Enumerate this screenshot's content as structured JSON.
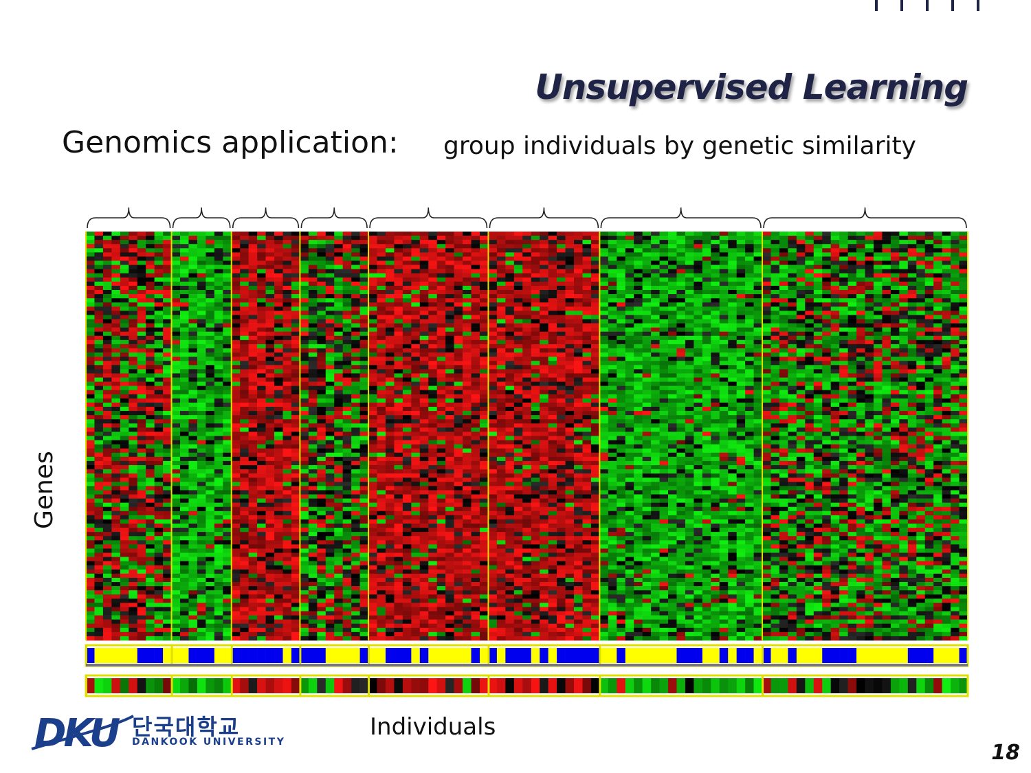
{
  "slide": {
    "title": "Unsupervised Learning",
    "subtitle": "Genomics application:",
    "subtitle_detail": "group individuals by genetic similarity",
    "page_number": "18"
  },
  "logo": {
    "korean": "단국대학교",
    "english": "DANKOOK UNIVERSITY"
  },
  "chart_data": {
    "type": "heatmap",
    "xlabel": "Individuals",
    "ylabel": "Genes",
    "n_genes": 98,
    "groups": [
      {
        "columns": 10,
        "dominant": "mixed"
      },
      {
        "columns": 7,
        "dominant": "green"
      },
      {
        "columns": 8,
        "dominant": "red"
      },
      {
        "columns": 8,
        "dominant": "mixed-dark"
      },
      {
        "columns": 14,
        "dominant": "red"
      },
      {
        "columns": 13,
        "dominant": "red"
      },
      {
        "columns": 19,
        "dominant": "green"
      },
      {
        "columns": 24,
        "dominant": "mixed-green"
      }
    ],
    "colors": {
      "high": "#ff1a1a",
      "low": "#10f010",
      "neutral": "#000000",
      "annotation_a": "#0000ee",
      "annotation_b": "#ffff00",
      "group_separator": "#e0e000"
    }
  }
}
